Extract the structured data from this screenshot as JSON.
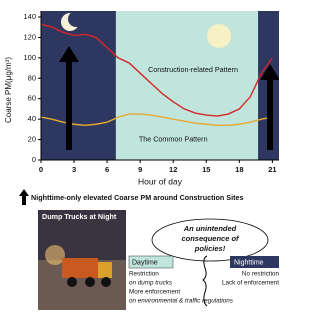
{
  "chart_data": {
    "type": "line",
    "x_label": "Hour of day",
    "y_label": "Coarse PM(μg/m³)",
    "x": [
      0,
      1,
      2,
      3,
      4,
      5,
      6,
      7,
      8,
      9,
      10,
      11,
      12,
      13,
      14,
      15,
      16,
      17,
      18,
      19,
      20,
      21
    ],
    "series": [
      {
        "name": "Construction-related Pattern",
        "color": "#d62728",
        "values": [
          133,
          130,
          125,
          122,
          123,
          120,
          110,
          100,
          95,
          85,
          75,
          65,
          57,
          50,
          46,
          44,
          43,
          45,
          50,
          62,
          85,
          100
        ]
      },
      {
        "name": "The Common Pattern",
        "color": "#e8a930",
        "values": [
          42,
          40,
          37,
          35,
          34,
          35,
          37,
          42,
          45,
          45,
          44,
          42,
          40,
          38,
          36,
          35,
          34,
          34,
          35,
          37,
          40,
          42
        ]
      }
    ],
    "series_label_positions": [
      [
        13.8,
        88
      ],
      [
        12,
        20
      ]
    ],
    "shading": [
      {
        "from": 0,
        "to": 6.8,
        "color": "#2e3760"
      },
      {
        "from": 6.8,
        "to": 19.7,
        "color": "#bfe5dc"
      },
      {
        "from": 19.7,
        "to": 21.6,
        "color": "#2e3760"
      }
    ],
    "xlim": [
      0,
      21.6
    ],
    "ylim": [
      0,
      140
    ],
    "xticks": [
      0,
      3,
      6,
      9,
      12,
      15,
      18,
      21
    ],
    "yticks": [
      0,
      20,
      40,
      60,
      80,
      100,
      120,
      140
    ]
  },
  "caption": "Nighttime-only elevated Coarse PM around Construction Sites",
  "photo": {
    "title": "Dump Trucks at Night"
  },
  "callout": {
    "lines": [
      "An unintended",
      "consequence of",
      "policies!"
    ]
  },
  "daytime": {
    "label": "Daytime",
    "lines": [
      "Restriction",
      "on dump trucks",
      "More enforcement",
      "on environmental & traffic regulations"
    ]
  },
  "nighttime": {
    "label": "Nighttime",
    "lines": [
      "No restriction",
      "Lack of enforcement"
    ]
  }
}
